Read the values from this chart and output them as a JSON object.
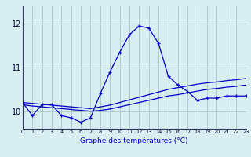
{
  "hours": [
    0,
    1,
    2,
    3,
    4,
    5,
    6,
    7,
    8,
    9,
    10,
    11,
    12,
    13,
    14,
    15,
    16,
    17,
    18,
    19,
    20,
    21,
    22,
    23
  ],
  "temp_main": [
    10.2,
    9.9,
    10.15,
    10.15,
    9.9,
    9.85,
    9.75,
    9.85,
    10.4,
    10.9,
    11.35,
    11.75,
    11.95,
    11.9,
    11.55,
    10.8,
    10.6,
    10.45,
    10.25,
    10.3,
    10.3,
    10.35,
    10.35,
    10.35
  ],
  "temp_line2": [
    10.15,
    10.12,
    10.1,
    10.08,
    10.06,
    10.04,
    10.02,
    10.0,
    10.02,
    10.05,
    10.1,
    10.15,
    10.2,
    10.25,
    10.3,
    10.35,
    10.38,
    10.42,
    10.46,
    10.5,
    10.52,
    10.55,
    10.57,
    10.6
  ],
  "temp_line3": [
    10.2,
    10.18,
    10.16,
    10.14,
    10.12,
    10.1,
    10.08,
    10.06,
    10.1,
    10.14,
    10.2,
    10.26,
    10.32,
    10.38,
    10.44,
    10.5,
    10.54,
    10.58,
    10.62,
    10.65,
    10.67,
    10.7,
    10.72,
    10.75
  ],
  "line_color": "#0000cc",
  "bg_color": "#d8eef0",
  "grid_color": "#aacccc",
  "xlabel": "Graphe des températures (°C)",
  "yticks": [
    10,
    11,
    12
  ],
  "ylim": [
    9.6,
    12.4
  ],
  "xlim": [
    0,
    23
  ]
}
